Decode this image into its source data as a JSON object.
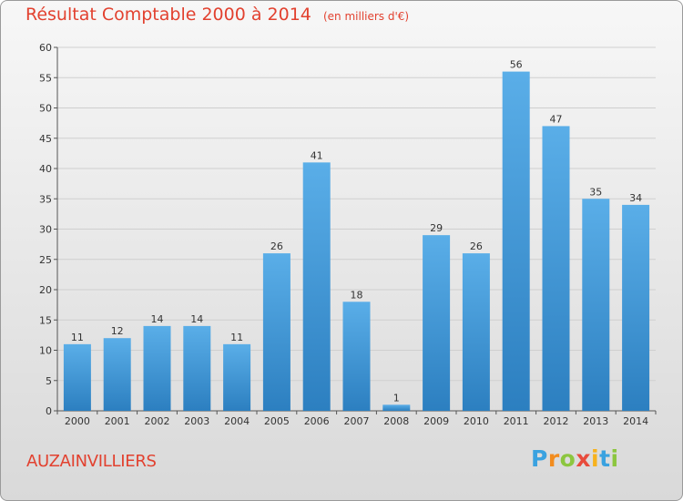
{
  "header": {
    "title": "Résultat Comptable 2000 à 2014",
    "subtitle": "(en milliers d'€)"
  },
  "commune": "AUZAINVILLIERS",
  "logo": [
    "P",
    "r",
    "o",
    "x",
    "i",
    "t",
    "i"
  ],
  "colors": {
    "bar_light": "#5aaee8",
    "bar_dark": "#2c7fc0",
    "title": "#e2412f",
    "grid": "#cfcfcf"
  },
  "chart_data": {
    "type": "bar",
    "title": "Résultat Comptable 2000 à 2014",
    "subtitle": "(en milliers d'€)",
    "xlabel": "",
    "ylabel": "",
    "categories": [
      "2000",
      "2001",
      "2002",
      "2003",
      "2004",
      "2005",
      "2006",
      "2007",
      "2008",
      "2009",
      "2010",
      "2011",
      "2012",
      "2013",
      "2014"
    ],
    "values": [
      11,
      12,
      14,
      14,
      11,
      26,
      41,
      18,
      1,
      29,
      26,
      56,
      47,
      35,
      34
    ],
    "ylim": [
      0,
      60
    ],
    "yticks": [
      0,
      5,
      10,
      15,
      20,
      25,
      30,
      35,
      40,
      45,
      50,
      55,
      60
    ],
    "grid": true
  }
}
